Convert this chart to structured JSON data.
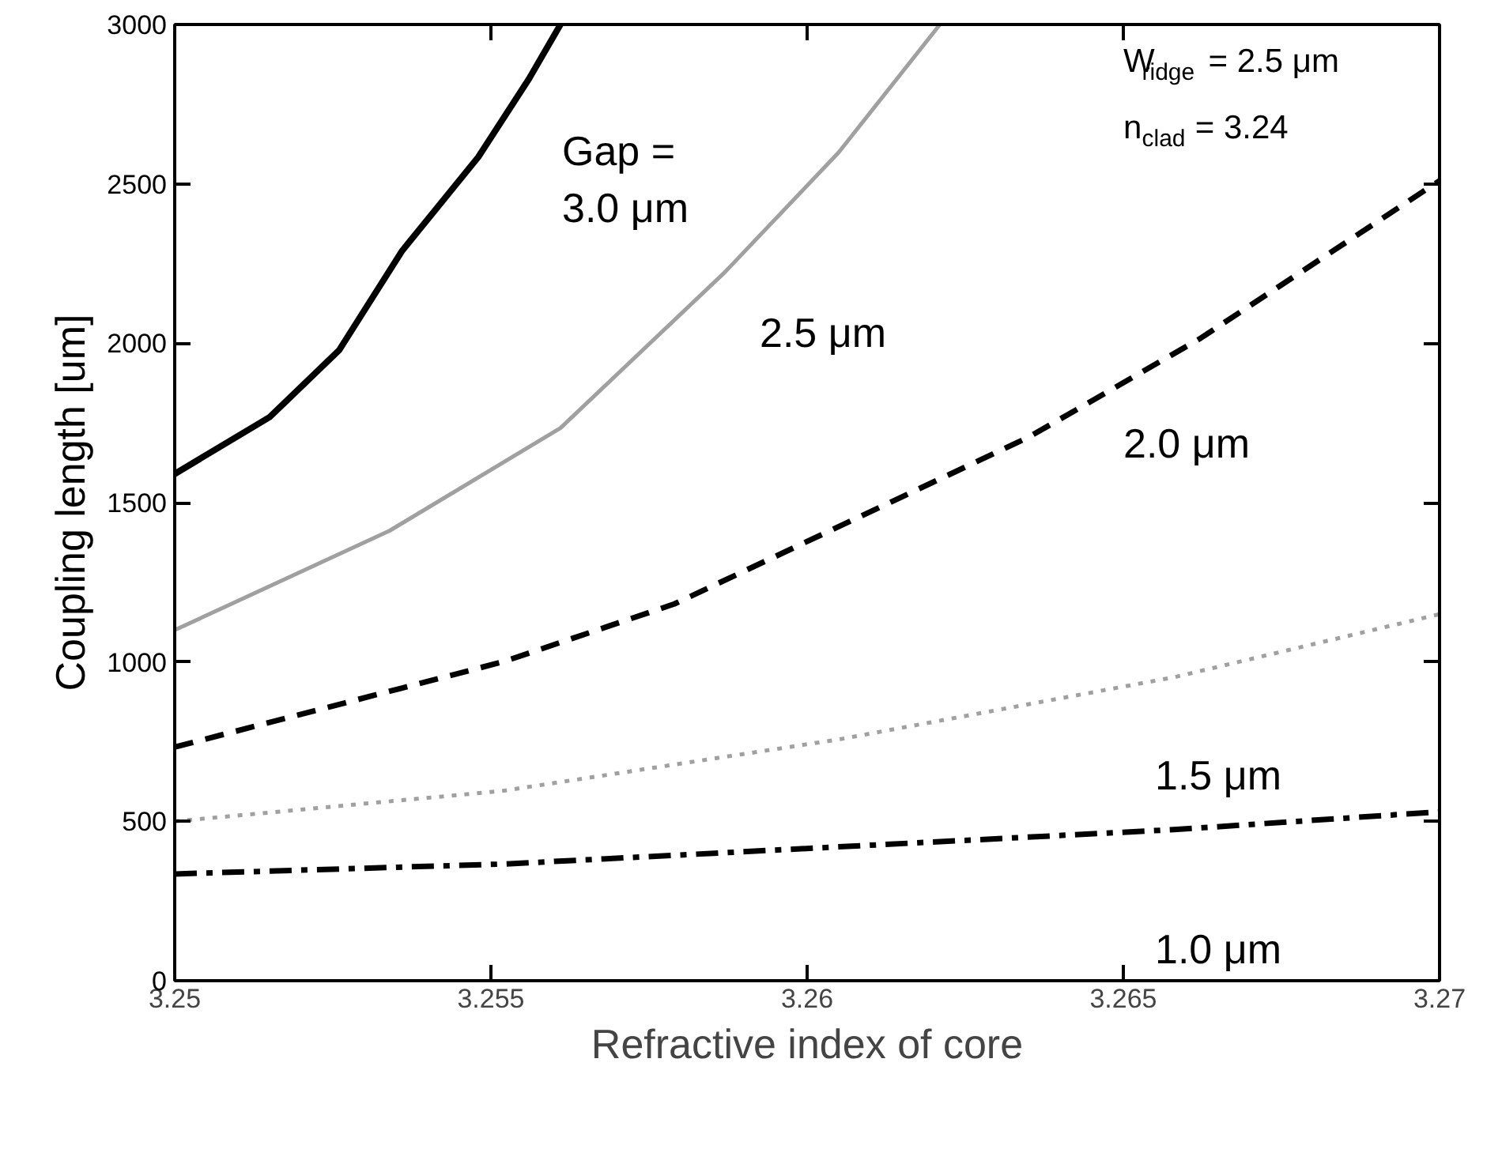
{
  "chart_data": {
    "type": "line",
    "xlabel": "Refractive index of core",
    "ylabel": "Coupling length [um]",
    "xlim": [
      3.25,
      3.27
    ],
    "ylim": [
      0,
      3000
    ],
    "xticks": [
      3.25,
      3.255,
      3.26,
      3.265,
      3.27
    ],
    "yticks": [
      0,
      500,
      1000,
      1500,
      2000,
      2500,
      3000
    ],
    "grid": false,
    "series": [
      {
        "color": "#000000",
        "line_style": "solid",
        "x": [
          3.25,
          3.2515,
          3.2526,
          3.2536,
          3.2548,
          3.2556,
          3.2561
        ],
        "values": [
          1590,
          1768,
          1978,
          2291,
          2584,
          2829,
          3000
        ]
      },
      {
        "color": "#a0a0a0",
        "line_style": "solid",
        "x": [
          3.25,
          3.2534,
          3.2561,
          3.2587,
          3.2605,
          3.2621
        ],
        "values": [
          1100,
          1412,
          1734,
          2223,
          2599,
          3000
        ]
      },
      {
        "color": "#000000",
        "line_style": "dashed",
        "x": [
          3.25,
          3.2552,
          3.2579,
          3.26,
          3.2635,
          3.2662,
          3.27
        ],
        "values": [
          733,
          1001,
          1182,
          1378,
          1705,
          2013,
          2510
        ]
      },
      {
        "color": "#a0a0a0",
        "line_style": "dotted",
        "x": [
          3.25,
          3.2552,
          3.2605,
          3.2658,
          3.27
        ],
        "values": [
          500,
          596,
          757,
          952,
          1150
        ]
      },
      {
        "color": "#000000",
        "line_style": "dashdot",
        "x": [
          3.25,
          3.2552,
          3.2605,
          3.2658,
          3.27
        ],
        "values": [
          335,
          366,
          420,
          474,
          530
        ]
      }
    ],
    "annotations": [
      "Gap =\n3.0 μm",
      "2.5 μm",
      "2.0 μm",
      "1.5 μm",
      "1.0 μm",
      "W$_{ridge}$ = 2.5 μm",
      "n$_{clad}$ = 3.24"
    ]
  }
}
